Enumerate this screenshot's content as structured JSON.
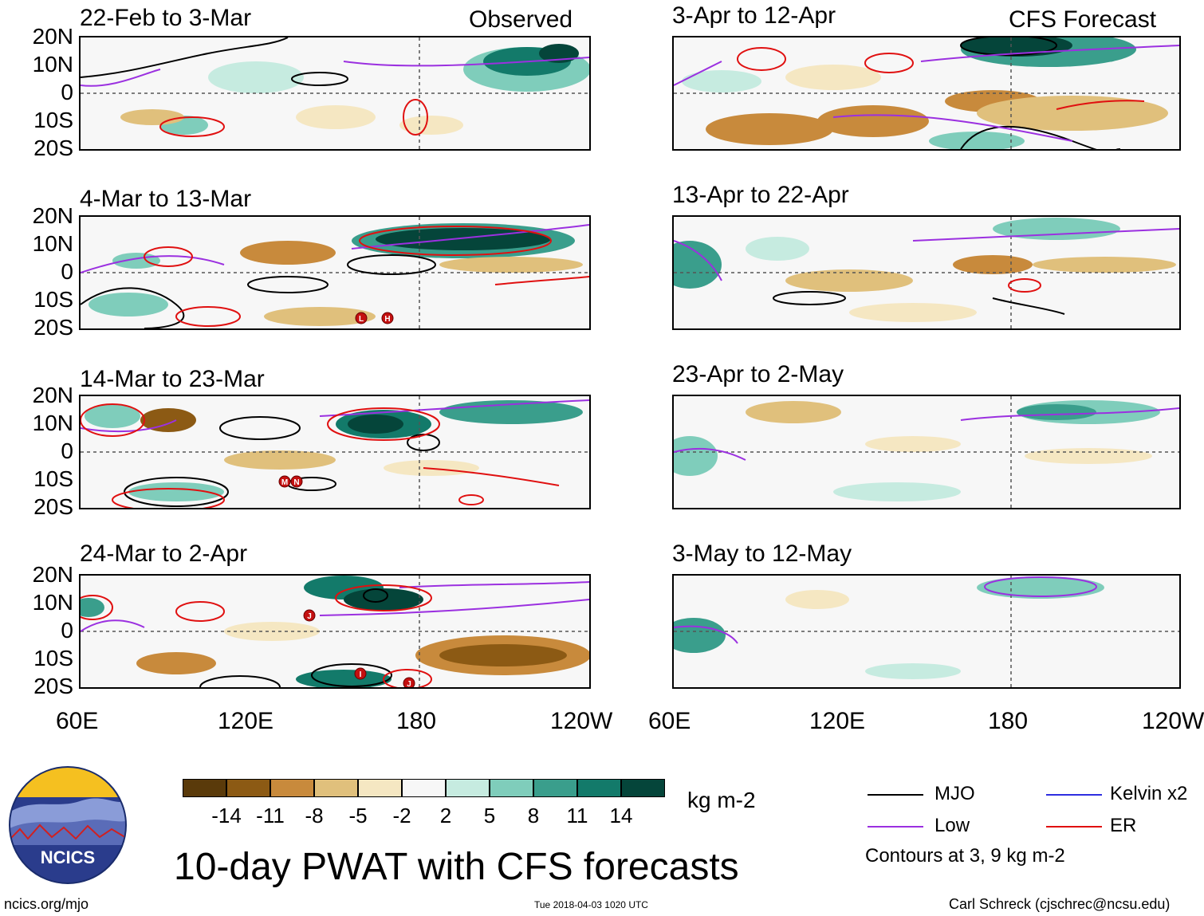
{
  "panels_left": [
    {
      "title": "22-Feb to 3-Mar",
      "tag": "Observed"
    },
    {
      "title": "4-Mar to 13-Mar",
      "tag": ""
    },
    {
      "title": "14-Mar to 23-Mar",
      "tag": ""
    },
    {
      "title": "24-Mar to 2-Apr",
      "tag": ""
    }
  ],
  "panels_right": [
    {
      "title": "3-Apr to 12-Apr",
      "tag": "CFS Forecast"
    },
    {
      "title": "13-Apr to 22-Apr",
      "tag": ""
    },
    {
      "title": "23-Apr to 2-May",
      "tag": ""
    },
    {
      "title": "3-May to 12-May",
      "tag": ""
    }
  ],
  "lat_labels": [
    "20N",
    "10N",
    "0",
    "10S",
    "20S"
  ],
  "lon_labels": [
    "60E",
    "120E",
    "180",
    "120W"
  ],
  "storm_markers": {
    "p2": [
      "L",
      "H"
    ],
    "p3": [
      "M",
      "N"
    ],
    "p4": [
      "J",
      "I",
      "J"
    ]
  },
  "colorbar": {
    "colors": [
      "#5a3a0a",
      "#8c5a14",
      "#c88a3c",
      "#e0c07c",
      "#f5e7c2",
      "#f7f7f7",
      "#c6ebe0",
      "#7fcdbb",
      "#3a9e8c",
      "#137a6a",
      "#05453a"
    ],
    "labels": [
      "-14",
      "-11",
      "-8",
      "-5",
      "-2",
      "2",
      "5",
      "8",
      "11",
      "14"
    ],
    "unit": "kg m-2"
  },
  "main_title": "10-day PWAT with CFS forecasts",
  "legend": {
    "items": [
      {
        "label": "MJO",
        "color": "#000000"
      },
      {
        "label": "Kelvin x2",
        "color": "#2e2ee0"
      },
      {
        "label": "Low",
        "color": "#9b30e0"
      },
      {
        "label": "ER",
        "color": "#e01010"
      }
    ],
    "note": "Contours at 3, 9 kg m-2"
  },
  "logo": {
    "text": "NCICS"
  },
  "footer": {
    "url": "ncics.org/mjo",
    "timestamp": "Tue 2018-04-03 1020 UTC",
    "author": "Carl Schreck (cjschrec@ncsu.edu)"
  }
}
